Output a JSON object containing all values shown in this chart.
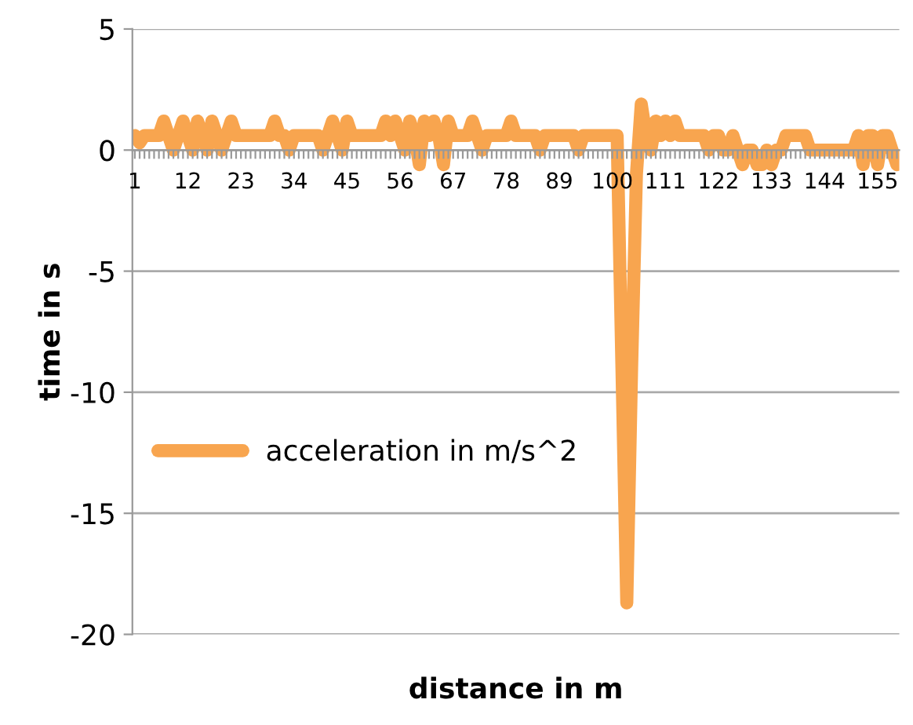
{
  "chart_data": {
    "type": "line",
    "xlabel": "distance in m",
    "ylabel": "time in s",
    "legend": "center left",
    "grid": "y",
    "ylim": [
      -20,
      5
    ],
    "yticks": [
      -20,
      -15,
      -10,
      -5,
      0,
      5
    ],
    "categories": [
      "1",
      null,
      null,
      null,
      null,
      null,
      null,
      null,
      null,
      null,
      null,
      "12",
      null,
      null,
      null,
      null,
      null,
      null,
      null,
      null,
      null,
      null,
      "23",
      null,
      null,
      null,
      null,
      null,
      null,
      null,
      null,
      null,
      null,
      "34",
      null,
      null,
      null,
      null,
      null,
      null,
      null,
      null,
      null,
      null,
      "45",
      null,
      null,
      null,
      null,
      null,
      null,
      null,
      null,
      null,
      null,
      "56",
      null,
      null,
      null,
      null,
      null,
      null,
      null,
      null,
      null,
      null,
      "67",
      null,
      null,
      null,
      null,
      null,
      null,
      null,
      null,
      null,
      null,
      "78",
      null,
      null,
      null,
      null,
      null,
      null,
      null,
      null,
      null,
      null,
      "89",
      null,
      null,
      null,
      null,
      null,
      null,
      null,
      null,
      null,
      null,
      "100",
      null,
      null,
      null,
      null,
      null,
      null,
      null,
      null,
      null,
      null,
      "111",
      null,
      null,
      null,
      null,
      null,
      null,
      null,
      null,
      null,
      null,
      "122",
      null,
      null,
      null,
      null,
      null,
      null,
      null,
      null,
      null,
      null,
      "133",
      null,
      null,
      null,
      null,
      null,
      null,
      null,
      null,
      null,
      null,
      "144",
      null,
      null,
      null,
      null,
      null,
      null,
      null,
      null,
      null,
      null,
      "155",
      null,
      null,
      null,
      null
    ],
    "series": [
      {
        "name": "acceleration in m/s^2",
        "color": "#f8a54f",
        "values": [
          0.6,
          0.3,
          0.6,
          0.6,
          0.6,
          0.6,
          1.2,
          0.6,
          0,
          0.6,
          1.2,
          0.6,
          0,
          1.2,
          0.6,
          0,
          1.2,
          0.6,
          0,
          0.6,
          1.2,
          0.6,
          0.6,
          0.6,
          0.6,
          0.6,
          0.6,
          0.6,
          0.6,
          1.2,
          0.6,
          0.6,
          0,
          0.6,
          0.6,
          0.6,
          0.6,
          0.6,
          0.6,
          0,
          0.6,
          1.2,
          0.6,
          0,
          1.2,
          0.6,
          0.6,
          0.6,
          0.6,
          0.6,
          0.6,
          0.6,
          1.2,
          0.6,
          1.2,
          0.6,
          0,
          1.2,
          0.6,
          -0.6,
          1.2,
          0.6,
          1.2,
          0.6,
          -0.6,
          1.2,
          0.6,
          0.6,
          0.6,
          0.6,
          1.2,
          0.6,
          0,
          0.6,
          0.6,
          0.6,
          0.6,
          0.6,
          1.2,
          0.6,
          0.6,
          0.6,
          0.6,
          0.6,
          0,
          0.6,
          0.6,
          0.6,
          0.6,
          0.6,
          0.6,
          0.6,
          0,
          0.6,
          0.6,
          0.6,
          0.6,
          0.6,
          0.6,
          0.6,
          0.6,
          -9,
          -18.7,
          -9,
          -1,
          1.9,
          0.6,
          0,
          1.2,
          0.6,
          1.2,
          0.6,
          1.2,
          0.6,
          0.6,
          0.6,
          0.6,
          0.6,
          0.6,
          0,
          0.6,
          0.6,
          0,
          0,
          0.6,
          0,
          -0.6,
          0,
          0,
          -0.6,
          -0.6,
          0,
          -0.6,
          0,
          0,
          0.6,
          0.6,
          0.6,
          0.6,
          0.6,
          0,
          0,
          0,
          0,
          0,
          0,
          0,
          0,
          0,
          0,
          0.6,
          -0.6,
          0.6,
          0.6,
          -0.6,
          0.6,
          0.6,
          0,
          -0.6
        ]
      }
    ]
  }
}
